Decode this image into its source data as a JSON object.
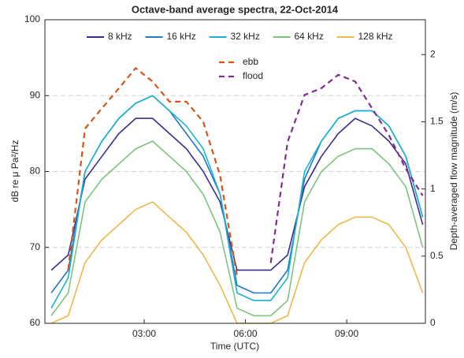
{
  "chart_data": {
    "type": "line",
    "title": "Octave-band average spectra, 22-Oct-2014",
    "x_label": "Time (UTC)",
    "y_label": "dB re μ Pa²/Hz",
    "y2_label": "Depth-averaged flow magnitude (m/s)",
    "x": [
      0.25,
      0.75,
      1.25,
      1.75,
      2.25,
      2.75,
      3.25,
      3.75,
      4.25,
      4.75,
      5.25,
      5.75,
      6.25,
      6.75,
      7.25,
      7.75,
      8.25,
      8.75,
      9.25,
      9.75,
      10.25,
      10.75,
      11.25
    ],
    "xlim": [
      0.06,
      11.33
    ],
    "xticks": [
      {
        "value": 3,
        "label": "03:00"
      },
      {
        "value": 6,
        "label": "06:00"
      },
      {
        "value": 9,
        "label": "09:00"
      }
    ],
    "ylim": [
      60,
      100
    ],
    "yticks": [
      60,
      70,
      80,
      90,
      100
    ],
    "y2lim": [
      0,
      2.26
    ],
    "y2ticks": [
      0,
      0.5,
      1,
      1.5,
      2
    ],
    "grid": true,
    "series": [
      {
        "name": "8 kHz",
        "color": "#3d2c8f",
        "values": [
          67,
          69,
          79,
          82,
          85,
          87,
          87,
          85,
          83,
          80,
          76,
          67,
          67,
          67,
          69,
          78,
          82,
          85,
          87,
          86,
          84,
          81,
          73
        ]
      },
      {
        "name": "16 kHz",
        "color": "#1f78c8",
        "values": [
          64,
          67,
          80,
          84,
          87,
          89,
          90,
          88,
          85,
          82,
          77,
          65,
          64,
          64,
          67,
          79,
          84,
          87,
          88,
          88,
          86,
          82,
          74
        ]
      },
      {
        "name": "32 kHz",
        "color": "#1bb3d1",
        "values": [
          62,
          66,
          80,
          84,
          87,
          89,
          90,
          88,
          86,
          83,
          77,
          64,
          63,
          63,
          66,
          80,
          84,
          87,
          88,
          88,
          86,
          82,
          74
        ]
      },
      {
        "name": "64 kHz",
        "color": "#7cc47c",
        "values": [
          61,
          64,
          76,
          79,
          81,
          83,
          84,
          82,
          80,
          77,
          72,
          62,
          61,
          61,
          63,
          76,
          80,
          82,
          83,
          83,
          81,
          78,
          70
        ]
      },
      {
        "name": "128 kHz",
        "color": "#ecb94a",
        "values": [
          60,
          61,
          68,
          71,
          73,
          75,
          76,
          74,
          72,
          69,
          65,
          60,
          60,
          60,
          61,
          68,
          71,
          73,
          74,
          74,
          73,
          70,
          64
        ]
      },
      {
        "name": "ebb",
        "color": "#d95319",
        "dashed": true,
        "axis": "y2",
        "values": [
          null,
          0.4,
          1.45,
          1.6,
          1.75,
          1.9,
          1.8,
          1.65,
          1.65,
          1.5,
          1.1,
          0.35,
          null,
          null,
          null,
          null,
          null,
          null,
          null,
          null,
          null,
          null,
          null
        ]
      },
      {
        "name": "flood",
        "color": "#7e2f8e",
        "dashed": true,
        "axis": "y2",
        "values": [
          null,
          null,
          null,
          null,
          null,
          null,
          null,
          null,
          null,
          null,
          null,
          null,
          null,
          0.45,
          1.35,
          1.7,
          1.75,
          1.85,
          1.8,
          1.6,
          1.4,
          1.15,
          0.95
        ]
      }
    ]
  }
}
